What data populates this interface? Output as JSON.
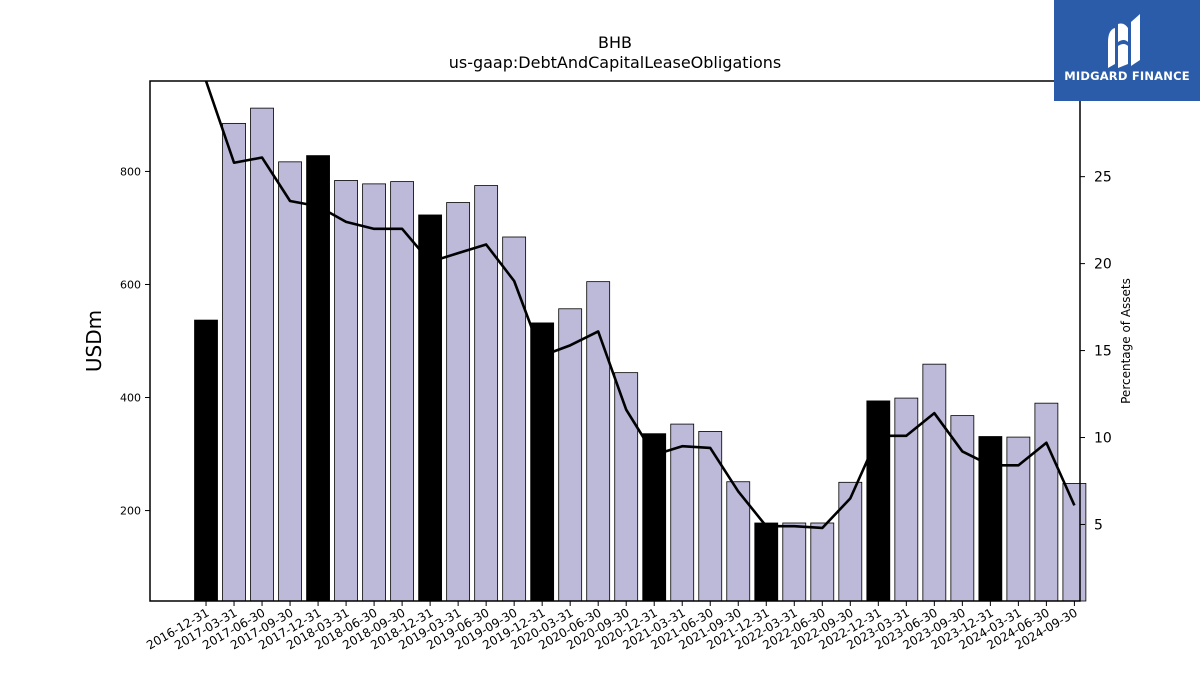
{
  "logo": {
    "text": "MIDGARD FINANCE",
    "icon": "midgard-logo-icon",
    "background": "#2a5caa"
  },
  "chart_data": {
    "type": "bar",
    "title": "BHB",
    "subtitle": "us-gaap:DebtAndCapitalLeaseObligations",
    "ylabel": "USDm",
    "y2label": "Percentage of Assets",
    "categories": [
      "2016-12-31",
      "2017-03-31",
      "2017-06-30",
      "2017-09-30",
      "2017-12-31",
      "2018-03-31",
      "2018-06-30",
      "2018-09-30",
      "2018-12-31",
      "2019-03-31",
      "2019-06-30",
      "2019-09-30",
      "2019-12-31",
      "2020-03-31",
      "2020-06-30",
      "2020-09-30",
      "2020-12-31",
      "2021-03-31",
      "2021-06-30",
      "2021-09-30",
      "2021-12-31",
      "2022-03-31",
      "2022-06-30",
      "2022-09-30",
      "2022-12-31",
      "2023-03-31",
      "2023-06-30",
      "2023-09-30",
      "2023-12-31",
      "2024-03-31",
      "2024-06-30",
      "2024-09-30"
    ],
    "series": [
      {
        "type": "bar",
        "axis": "left",
        "values": [
          537,
          885,
          912,
          817,
          828,
          784,
          778,
          782,
          723,
          745,
          775,
          684,
          532,
          557,
          605,
          444,
          336,
          353,
          340,
          251,
          178,
          178,
          178,
          250,
          394,
          399,
          459,
          368,
          331,
          330,
          390,
          248
        ]
      },
      {
        "type": "line",
        "axis": "right",
        "values": [
          30.5,
          25.8,
          26.1,
          23.6,
          23.3,
          22.4,
          22.0,
          22.0,
          20.1,
          20.6,
          21.1,
          19.0,
          14.7,
          15.3,
          16.1,
          11.6,
          9.0,
          9.5,
          9.4,
          6.9,
          4.9,
          4.9,
          4.8,
          6.5,
          10.1,
          10.1,
          11.4,
          9.2,
          8.4,
          8.4,
          9.7,
          6.1
        ]
      }
    ],
    "year_end_color": "#000000",
    "quarter_color": "#bcb9d9",
    "line_color": "#000000",
    "ylim": [
      40,
      960
    ],
    "yticks": [
      200,
      400,
      600,
      800
    ],
    "y2lim": [
      0.6,
      30.5
    ],
    "y2ticks": [
      5,
      10,
      15,
      20,
      25
    ],
    "grid": false,
    "legend": "none"
  }
}
